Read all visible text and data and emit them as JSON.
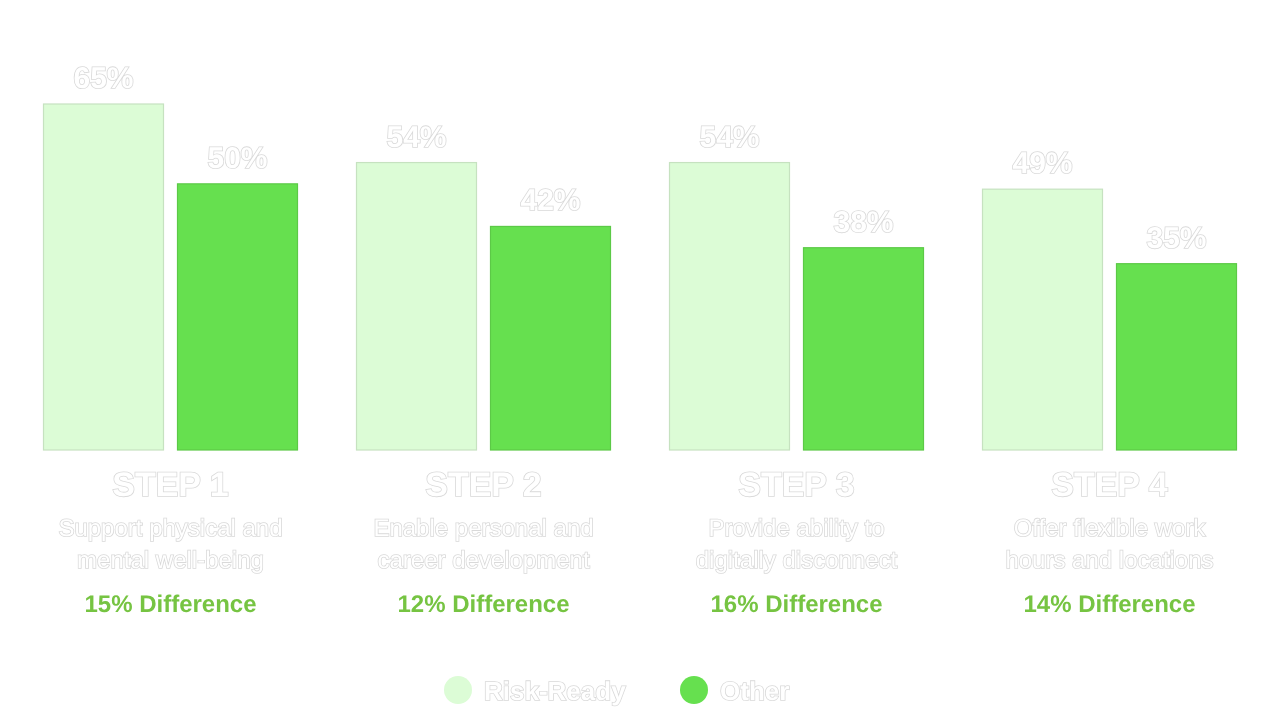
{
  "chart_data": {
    "type": "bar",
    "categories": [
      "STEP 1\nSupport physical and\nmental well-being\n15% Difference",
      "STEP 2\nEnable personal and\ncareer development\n12% Difference",
      "STEP 3\nProvide ability to\ndigitally disconnect\n16% Difference",
      "STEP 4\nOffer flexible work\nhours and locations\n14% Difference"
    ],
    "series": [
      {
        "name": "Risk-Ready",
        "color": "#dcfcd6",
        "values": [
          65,
          54,
          54,
          49
        ],
        "value_labels": [
          "65%",
          "54%",
          "54%",
          "49%"
        ]
      },
      {
        "name": "Other",
        "color": "#66e04f",
        "values": [
          50,
          42,
          38,
          35
        ],
        "value_labels": [
          "50%",
          "42%",
          "38%",
          "35%"
        ]
      }
    ],
    "legend": "bottom"
  }
}
